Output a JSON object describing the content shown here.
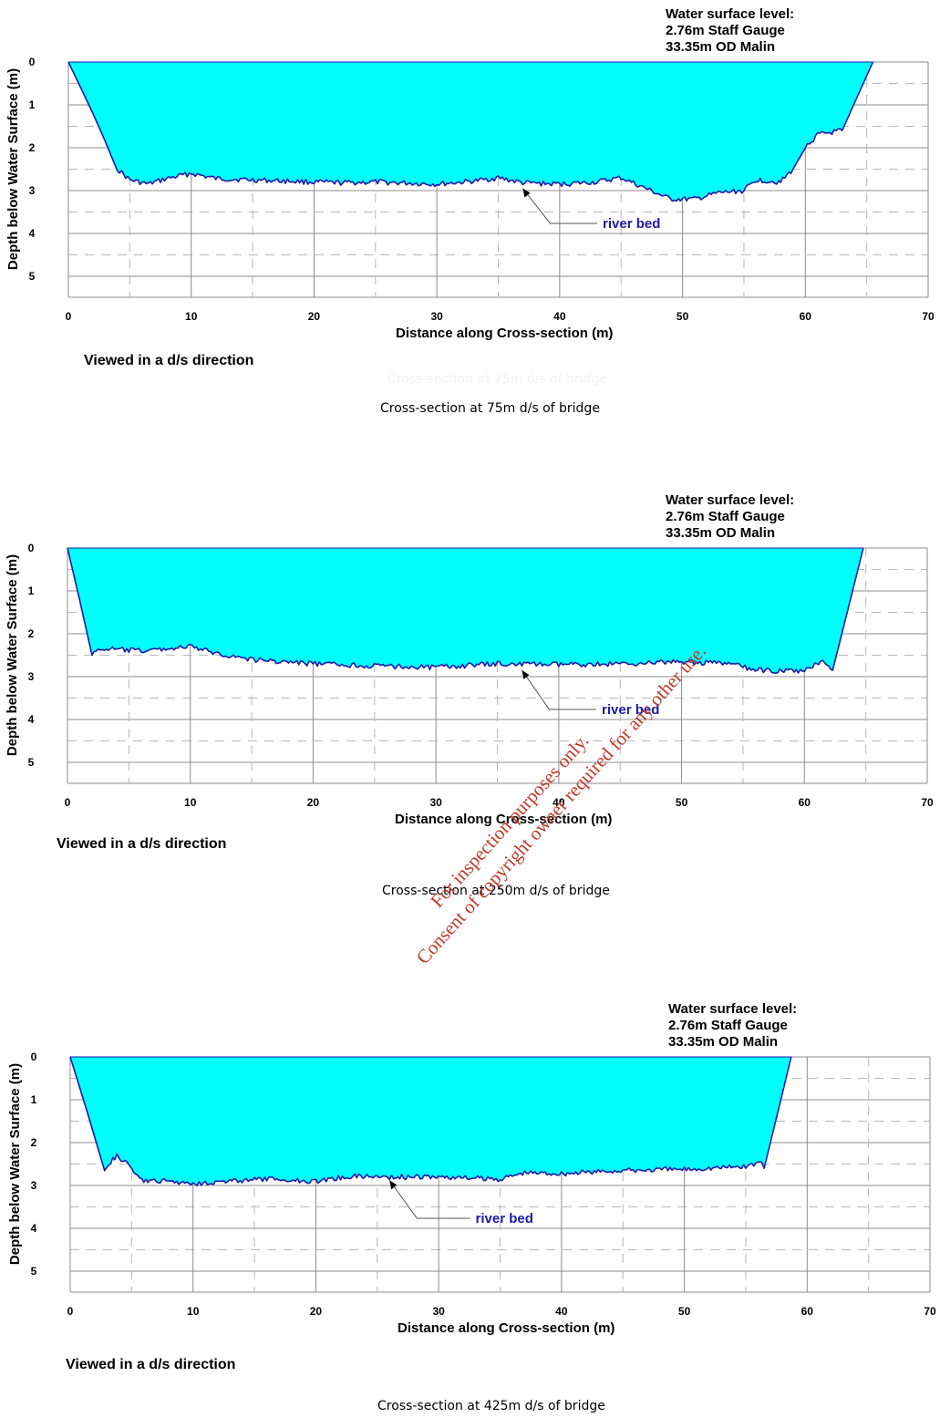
{
  "chart_data": [
    {
      "type": "area",
      "caption": "Cross-section at 75m d/s of bridge",
      "faded_caption": "Cross-section at 75m d/s of bridge",
      "view_note": "Viewed in a d/s direction",
      "water_level_lines": [
        "Water surface level:",
        "2.76m Staff Gauge",
        "33.35m OD Malin"
      ],
      "annotation": "river bed",
      "annotation_target": [
        37,
        2.95
      ],
      "annotation_text_at": [
        43.5,
        3.85
      ],
      "xlabel": "Distance along Cross-section (m)",
      "ylabel": "Depth below Water Surface (m)",
      "xlim": [
        0,
        70
      ],
      "ylim": [
        0,
        5
      ],
      "x_ticks": [
        0,
        10,
        20,
        30,
        40,
        50,
        60,
        70
      ],
      "y_ticks": [
        0,
        1,
        2,
        3,
        4,
        5
      ],
      "fill_color": "#00ffff",
      "line_color": "#1a1aa8",
      "profile": [
        [
          0,
          0
        ],
        [
          2,
          1.2
        ],
        [
          4,
          2.5
        ],
        [
          5,
          2.75
        ],
        [
          6.5,
          2.85
        ],
        [
          8,
          2.72
        ],
        [
          10,
          2.6
        ],
        [
          12,
          2.72
        ],
        [
          15,
          2.75
        ],
        [
          18,
          2.78
        ],
        [
          20,
          2.8
        ],
        [
          22,
          2.82
        ],
        [
          25,
          2.8
        ],
        [
          28,
          2.83
        ],
        [
          30,
          2.85
        ],
        [
          33,
          2.78
        ],
        [
          35,
          2.7
        ],
        [
          37,
          2.82
        ],
        [
          40,
          2.85
        ],
        [
          43,
          2.8
        ],
        [
          45,
          2.7
        ],
        [
          47,
          2.95
        ],
        [
          49,
          3.2
        ],
        [
          51,
          3.2
        ],
        [
          53,
          3.05
        ],
        [
          55,
          3.0
        ],
        [
          56,
          2.75
        ],
        [
          58,
          2.8
        ],
        [
          59,
          2.5
        ],
        [
          60,
          2.0
        ],
        [
          61,
          1.7
        ],
        [
          63,
          1.6
        ],
        [
          65.5,
          0
        ]
      ]
    },
    {
      "type": "area",
      "caption": "Cross-section at 250m d/s of bridge",
      "view_note": "Viewed in a d/s direction",
      "water_level_lines": [
        "Water surface level:",
        "2.76m Staff Gauge",
        "33.35m OD Malin"
      ],
      "annotation": "river bed",
      "annotation_target": [
        37,
        2.85
      ],
      "annotation_text_at": [
        43.5,
        3.85
      ],
      "xlabel": "Distance along Cross-section (m)",
      "ylabel": "Depth below Water Surface (m)",
      "xlim": [
        0,
        70
      ],
      "ylim": [
        0,
        5
      ],
      "x_ticks": [
        0,
        10,
        20,
        30,
        40,
        50,
        60,
        70
      ],
      "y_ticks": [
        0,
        1,
        2,
        3,
        4,
        5
      ],
      "fill_color": "#00ffff",
      "line_color": "#1a1aa8",
      "profile": [
        [
          0,
          0
        ],
        [
          2,
          2.45
        ],
        [
          3,
          2.35
        ],
        [
          6,
          2.4
        ],
        [
          10,
          2.3
        ],
        [
          12,
          2.45
        ],
        [
          15,
          2.6
        ],
        [
          20,
          2.7
        ],
        [
          25,
          2.75
        ],
        [
          30,
          2.78
        ],
        [
          35,
          2.7
        ],
        [
          40,
          2.72
        ],
        [
          45,
          2.7
        ],
        [
          50,
          2.65
        ],
        [
          54,
          2.7
        ],
        [
          56,
          2.85
        ],
        [
          60,
          2.88
        ],
        [
          61.5,
          2.6
        ],
        [
          62.3,
          2.85
        ],
        [
          64.8,
          0
        ]
      ]
    },
    {
      "type": "area",
      "caption": "Cross-section at 425m d/s of bridge",
      "view_note": "Viewed in a d/s direction",
      "water_level_lines": [
        "Water surface level:",
        "2.76m Staff Gauge",
        "33.35m OD Malin"
      ],
      "annotation": "river bed",
      "annotation_target": [
        26,
        2.88
      ],
      "annotation_text_at": [
        33,
        3.85
      ],
      "xlabel": "Distance along Cross-section (m)",
      "ylabel": "Depth below Water Surface (m)",
      "xlim": [
        0,
        70
      ],
      "ylim": [
        0,
        5
      ],
      "x_ticks": [
        0,
        10,
        20,
        30,
        40,
        50,
        60,
        70
      ],
      "y_ticks": [
        0,
        1,
        2,
        3,
        4,
        5
      ],
      "fill_color": "#00ffff",
      "line_color": "#1a1aa8",
      "profile": [
        [
          0,
          0
        ],
        [
          2.8,
          2.6
        ],
        [
          3.8,
          2.3
        ],
        [
          5,
          2.6
        ],
        [
          6,
          2.9
        ],
        [
          8,
          2.9
        ],
        [
          10,
          2.95
        ],
        [
          13,
          2.9
        ],
        [
          16,
          2.85
        ],
        [
          20,
          2.9
        ],
        [
          23,
          2.78
        ],
        [
          26,
          2.8
        ],
        [
          30,
          2.8
        ],
        [
          35,
          2.85
        ],
        [
          37,
          2.7
        ],
        [
          40,
          2.72
        ],
        [
          45,
          2.65
        ],
        [
          50,
          2.62
        ],
        [
          55,
          2.55
        ],
        [
          56.3,
          2.45
        ],
        [
          56.5,
          2.6
        ],
        [
          58.7,
          0
        ]
      ]
    }
  ],
  "watermark_lines": [
    "For inspection purposes only.",
    "Consent of copyright owner required for any other use."
  ]
}
